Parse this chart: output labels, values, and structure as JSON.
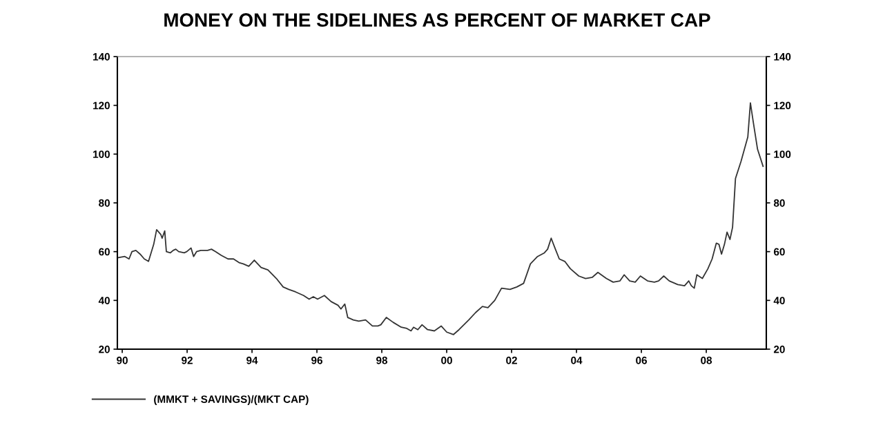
{
  "chart_data": {
    "type": "line",
    "title": "MONEY ON THE SIDELINES AS PERCENT OF MARKET CAP",
    "x": [
      1989.87,
      1990.08,
      1990.21,
      1990.3,
      1990.42,
      1990.55,
      1990.68,
      1990.81,
      1990.97,
      1991.06,
      1991.19,
      1991.23,
      1991.31,
      1991.36,
      1991.48,
      1991.57,
      1991.65,
      1991.74,
      1991.91,
      1991.99,
      1992.12,
      1992.2,
      1992.29,
      1992.42,
      1992.63,
      1992.75,
      1992.88,
      1993.05,
      1993.26,
      1993.43,
      1993.6,
      1993.73,
      1993.9,
      1994.07,
      1994.28,
      1994.49,
      1994.75,
      1994.96,
      1995.13,
      1995.34,
      1995.59,
      1995.76,
      1995.89,
      1996.02,
      1996.23,
      1996.44,
      1996.65,
      1996.74,
      1996.86,
      1996.95,
      1997.12,
      1997.29,
      1997.5,
      1997.71,
      1997.88,
      1997.97,
      1998.14,
      1998.35,
      1998.6,
      1998.77,
      1998.9,
      1998.98,
      1999.11,
      1999.24,
      1999.41,
      1999.62,
      1999.83,
      2000.0,
      2000.21,
      2000.38,
      2000.68,
      2000.89,
      2001.1,
      2001.27,
      2001.48,
      2001.69,
      2001.95,
      2002.16,
      2002.37,
      2002.58,
      2002.8,
      2003.01,
      2003.11,
      2003.22,
      2003.35,
      2003.47,
      2003.64,
      2003.81,
      2004.07,
      2004.28,
      2004.49,
      2004.66,
      2004.92,
      2005.13,
      2005.34,
      2005.47,
      2005.64,
      2005.81,
      2005.97,
      2006.19,
      2006.4,
      2006.53,
      2006.69,
      2006.86,
      2007.12,
      2007.33,
      2007.46,
      2007.54,
      2007.63,
      2007.71,
      2007.88,
      2008.05,
      2008.18,
      2008.31,
      2008.39,
      2008.47,
      2008.56,
      2008.64,
      2008.73,
      2008.81,
      2008.9,
      2009.07,
      2009.28,
      2009.36,
      2009.45,
      2009.58,
      2009.75
    ],
    "series": [
      {
        "name": "(MMKT + SAVINGS)/(MKT CAP)",
        "color": "#333333",
        "values": [
          57.5,
          58,
          57,
          60,
          60.5,
          59,
          57,
          56,
          63,
          69,
          67,
          65.5,
          68.5,
          60,
          59.5,
          60.5,
          61,
          60,
          59.5,
          60,
          61.5,
          58,
          60,
          60.5,
          60.5,
          61,
          60,
          58.5,
          57,
          57,
          55.5,
          55,
          54,
          56.5,
          53.5,
          52.5,
          49,
          45.5,
          44.5,
          43.5,
          42,
          40.5,
          41.5,
          40.5,
          42,
          39.5,
          38,
          36.5,
          38.5,
          33,
          32,
          31.5,
          32,
          29.5,
          29.5,
          30,
          33,
          31,
          29,
          28.5,
          27.5,
          29,
          28,
          30,
          28,
          27.5,
          29.5,
          27,
          26,
          28,
          32,
          35,
          37.5,
          37,
          40,
          45,
          44.5,
          45.5,
          47,
          55,
          58,
          59.5,
          61,
          65.5,
          61,
          57,
          56,
          53,
          50,
          49,
          49.5,
          51.5,
          49,
          47.5,
          48,
          50.5,
          48,
          47.5,
          50,
          48,
          47.5,
          48,
          50,
          48,
          46.5,
          46,
          48,
          46,
          45,
          50.5,
          49,
          53,
          57,
          63.5,
          63,
          59,
          63,
          68,
          65,
          70,
          90,
          97,
          107,
          121,
          113,
          102,
          95
        ]
      }
    ],
    "xlim": [
      1989.85,
      2009.85
    ],
    "xticks": [
      {
        "value": 1990,
        "label": "90"
      },
      {
        "value": 1992,
        "label": "92"
      },
      {
        "value": 1994,
        "label": "94"
      },
      {
        "value": 1996,
        "label": "96"
      },
      {
        "value": 1998,
        "label": "98"
      },
      {
        "value": 2000,
        "label": "00"
      },
      {
        "value": 2002,
        "label": "02"
      },
      {
        "value": 2004,
        "label": "04"
      },
      {
        "value": 2006,
        "label": "06"
      },
      {
        "value": 2008,
        "label": "08"
      }
    ],
    "ylim": [
      20,
      140
    ],
    "yticks": [
      20,
      40,
      60,
      80,
      100,
      120,
      140
    ],
    "y2lim": [
      20,
      140
    ],
    "y2ticks": [
      20,
      40,
      60,
      80,
      100,
      120,
      140
    ],
    "grid": false,
    "legend": "bottom left",
    "marker": "none",
    "line_style": "solid"
  }
}
